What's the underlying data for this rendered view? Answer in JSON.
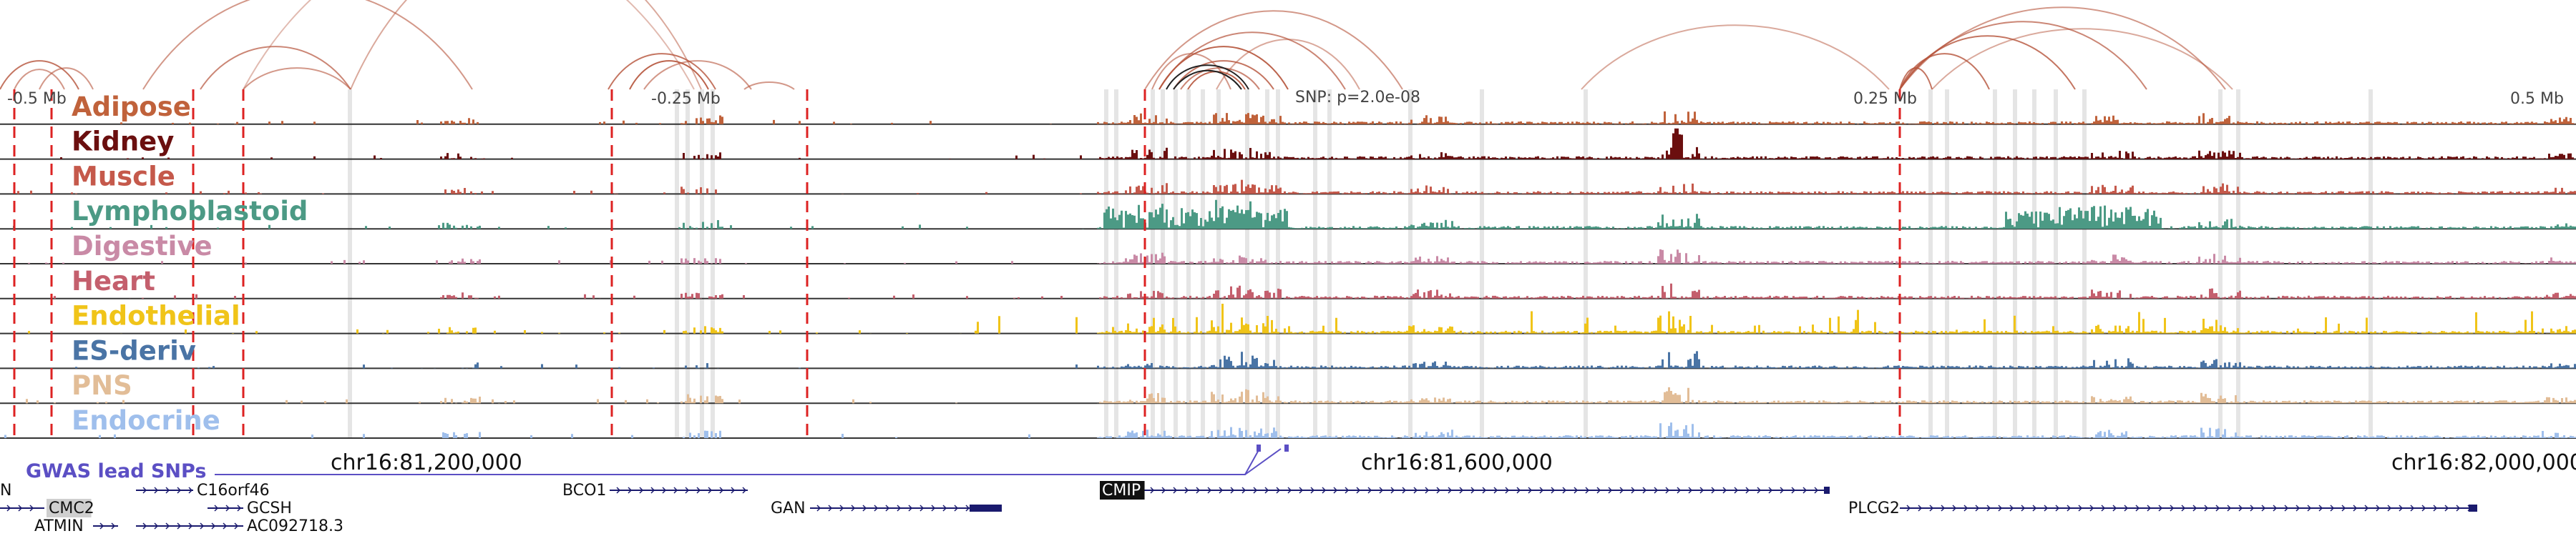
{
  "tracks": [
    {
      "name": "Adipose",
      "color": "#c0623b"
    },
    {
      "name": "Kidney",
      "color": "#6b0f0f"
    },
    {
      "name": "Muscle",
      "color": "#c5594b"
    },
    {
      "name": "Lymphoblastoid",
      "color": "#4c9a85"
    },
    {
      "name": "Digestive",
      "color": "#c98aa6"
    },
    {
      "name": "Heart",
      "color": "#c45f6d"
    },
    {
      "name": "Endothelial",
      "color": "#f0c419"
    },
    {
      "name": "ES-deriv",
      "color": "#4a74a5"
    },
    {
      "name": "PNS",
      "color": "#e2bd97"
    },
    {
      "name": "Endocrine",
      "color": "#9fbfec"
    }
  ],
  "distance_labels": [
    {
      "text": "-0.5 Mb"
    },
    {
      "text": "-0.25 Mb"
    },
    {
      "text": "0.25 Mb"
    },
    {
      "text": "0.5 Mb"
    }
  ],
  "snp_label": "SNP: p=2.0e-08",
  "gwas_label": "GWAS lead SNPs",
  "coordinates": [
    "chr16:81,200,000",
    "chr16:81,600,000",
    "chr16:82,000,000"
  ],
  "genes": [
    {
      "name": "N",
      "highlight": false
    },
    {
      "name": "C16orf46",
      "highlight": false
    },
    {
      "name": "CMC2",
      "highlight": "gray"
    },
    {
      "name": "GCSH",
      "highlight": false
    },
    {
      "name": "ATMIN",
      "highlight": false
    },
    {
      "name": "AC092718.3",
      "highlight": false
    },
    {
      "name": "BCO1",
      "highlight": false
    },
    {
      "name": "GAN",
      "highlight": false
    },
    {
      "name": "CMIP",
      "highlight": "black"
    },
    {
      "name": "PLCG2",
      "highlight": false
    }
  ],
  "colors": {
    "arc": "#b5533a",
    "arc_dark": "#222222",
    "gwas": "#5b4fc4",
    "gene": "#1a1a6e",
    "boundary": "#dd2222",
    "highlight_band": "#d0d0d0"
  }
}
